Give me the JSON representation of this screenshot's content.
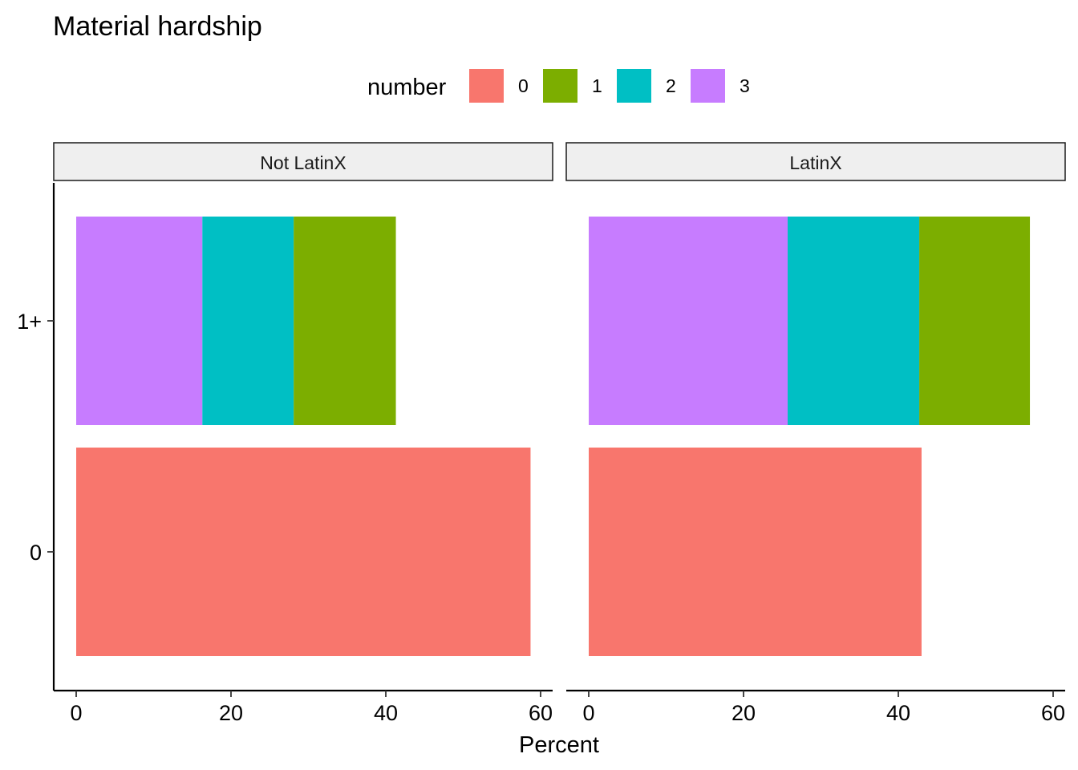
{
  "chart_data": {
    "type": "bar",
    "orientation": "horizontal",
    "stacked": true,
    "title": "Material hardship",
    "xlabel": "Percent",
    "ylabel": "",
    "xlim": [
      0,
      60
    ],
    "x_ticks": [
      0,
      20,
      40,
      60
    ],
    "categories": [
      "1+",
      "0"
    ],
    "grid": false,
    "legend": {
      "title": "number",
      "placement": "top",
      "entries": [
        {
          "label": "0",
          "color": "#F8766D"
        },
        {
          "label": "1",
          "color": "#7CAE00"
        },
        {
          "label": "2",
          "color": "#00BFC4"
        },
        {
          "label": "3",
          "color": "#C77CFF"
        }
      ]
    },
    "facets": [
      {
        "label": "Not LatinX",
        "bars": [
          {
            "category": "1+",
            "segments": [
              {
                "number": "3",
                "value": 16.3
              },
              {
                "number": "2",
                "value": 11.8
              },
              {
                "number": "1",
                "value": 13.2
              }
            ]
          },
          {
            "category": "0",
            "segments": [
              {
                "number": "0",
                "value": 58.7
              }
            ]
          }
        ]
      },
      {
        "label": "LatinX",
        "bars": [
          {
            "category": "1+",
            "segments": [
              {
                "number": "3",
                "value": 25.7
              },
              {
                "number": "2",
                "value": 17.0
              },
              {
                "number": "1",
                "value": 14.3
              }
            ]
          },
          {
            "category": "0",
            "segments": [
              {
                "number": "0",
                "value": 43.0
              }
            ]
          }
        ]
      }
    ]
  }
}
